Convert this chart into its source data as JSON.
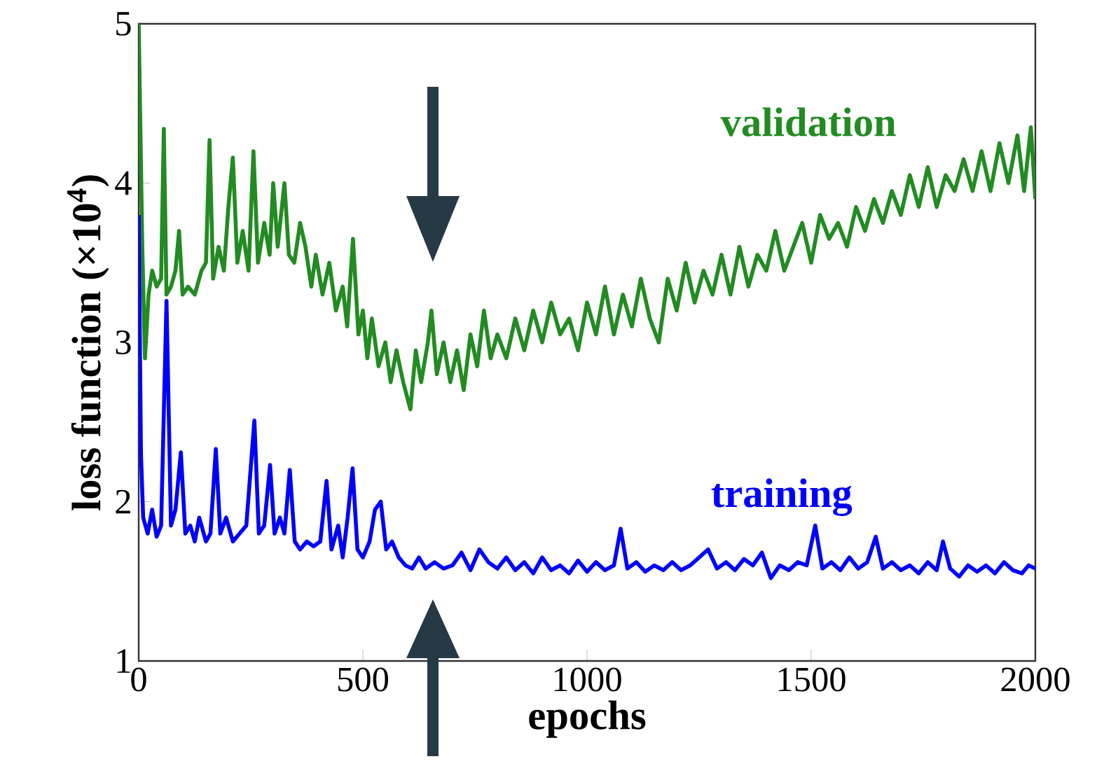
{
  "chart_data": {
    "type": "line",
    "xlabel": "epochs",
    "ylabel": "loss function (×10$^{4}$)",
    "xlim": [
      0,
      2000
    ],
    "ylim": [
      1,
      5
    ],
    "xticks": [
      0,
      500,
      1000,
      1500,
      2000
    ],
    "yticks": [
      1,
      2,
      3,
      4,
      5
    ],
    "legend": false,
    "grid": false,
    "marker": "none",
    "line_style": "solid",
    "series": [
      {
        "name": "validation",
        "color": "#228b22",
        "x": [
          0,
          8,
          14,
          22,
          30,
          40,
          50,
          56,
          62,
          72,
          82,
          90,
          98,
          110,
          125,
          140,
          150,
          158,
          166,
          178,
          190,
          200,
          210,
          220,
          232,
          245,
          256,
          266,
          280,
          292,
          300,
          310,
          325,
          335,
          347,
          360,
          372,
          385,
          395,
          410,
          425,
          440,
          455,
          465,
          478,
          490,
          500,
          510,
          520,
          535,
          550,
          562,
          575,
          590,
          606,
          618,
          630,
          645,
          653,
          665,
          680,
          695,
          710,
          725,
          740,
          755,
          770,
          785,
          800,
          820,
          840,
          860,
          880,
          900,
          920,
          940,
          960,
          980,
          1000,
          1020,
          1040,
          1060,
          1080,
          1100,
          1120,
          1140,
          1160,
          1180,
          1200,
          1220,
          1240,
          1260,
          1280,
          1300,
          1320,
          1340,
          1360,
          1380,
          1400,
          1420,
          1440,
          1460,
          1480,
          1500,
          1520,
          1540,
          1560,
          1580,
          1600,
          1620,
          1640,
          1660,
          1680,
          1700,
          1720,
          1740,
          1760,
          1780,
          1800,
          1820,
          1840,
          1860,
          1880,
          1900,
          1920,
          1940,
          1960,
          1975,
          1990,
          2000
        ],
        "values": [
          5.0,
          3.6,
          2.9,
          3.3,
          3.45,
          3.35,
          3.4,
          4.34,
          3.3,
          3.35,
          3.45,
          3.7,
          3.3,
          3.35,
          3.3,
          3.45,
          3.5,
          4.27,
          3.4,
          3.6,
          3.45,
          3.85,
          4.16,
          3.5,
          3.7,
          3.45,
          4.2,
          3.5,
          3.75,
          3.55,
          4.0,
          3.6,
          4.0,
          3.55,
          3.5,
          3.75,
          3.6,
          3.35,
          3.55,
          3.3,
          3.5,
          3.2,
          3.35,
          3.1,
          3.65,
          3.05,
          3.2,
          2.9,
          3.15,
          2.85,
          3.0,
          2.75,
          2.95,
          2.75,
          2.58,
          2.95,
          2.75,
          3.0,
          3.2,
          2.8,
          3.0,
          2.75,
          2.95,
          2.7,
          3.05,
          2.85,
          3.2,
          2.9,
          3.05,
          2.9,
          3.15,
          2.95,
          3.2,
          3.0,
          3.25,
          3.05,
          3.15,
          2.95,
          3.25,
          3.05,
          3.35,
          3.05,
          3.3,
          3.1,
          3.4,
          3.15,
          3.0,
          3.4,
          3.2,
          3.5,
          3.25,
          3.45,
          3.3,
          3.55,
          3.3,
          3.6,
          3.35,
          3.55,
          3.45,
          3.7,
          3.45,
          3.6,
          3.75,
          3.5,
          3.8,
          3.65,
          3.75,
          3.6,
          3.85,
          3.7,
          3.9,
          3.75,
          3.95,
          3.8,
          4.05,
          3.85,
          4.1,
          3.85,
          4.05,
          3.95,
          4.15,
          3.95,
          4.2,
          3.95,
          4.25,
          4.0,
          4.3,
          3.95,
          4.35,
          3.9
        ]
      },
      {
        "name": "training",
        "color": "#0000ff",
        "x": [
          0,
          5,
          10,
          20,
          30,
          40,
          50,
          62,
          72,
          82,
          94,
          104,
          115,
          125,
          135,
          150,
          160,
          172,
          182,
          195,
          210,
          225,
          240,
          258,
          268,
          280,
          293,
          303,
          315,
          325,
          337,
          348,
          360,
          375,
          390,
          405,
          419,
          430,
          445,
          455,
          466,
          477,
          488,
          500,
          515,
          527,
          540,
          552,
          565,
          580,
          595,
          610,
          625,
          640,
          660,
          680,
          700,
          720,
          740,
          760,
          780,
          800,
          820,
          840,
          860,
          880,
          900,
          920,
          940,
          960,
          980,
          1000,
          1020,
          1040,
          1060,
          1075,
          1090,
          1110,
          1130,
          1150,
          1170,
          1190,
          1210,
          1230,
          1250,
          1270,
          1290,
          1310,
          1330,
          1350,
          1370,
          1390,
          1410,
          1430,
          1450,
          1470,
          1490,
          1509,
          1525,
          1545,
          1565,
          1585,
          1605,
          1625,
          1644,
          1660,
          1680,
          1700,
          1720,
          1740,
          1760,
          1780,
          1794,
          1810,
          1830,
          1850,
          1870,
          1890,
          1910,
          1930,
          1950,
          1970,
          1985,
          2000
        ],
        "values": [
          3.8,
          2.3,
          1.9,
          1.8,
          1.95,
          1.78,
          1.85,
          3.26,
          1.85,
          1.95,
          2.31,
          1.8,
          1.85,
          1.75,
          1.9,
          1.75,
          1.8,
          2.33,
          1.8,
          1.9,
          1.75,
          1.8,
          1.85,
          2.51,
          1.8,
          1.85,
          2.23,
          1.8,
          1.9,
          1.8,
          2.2,
          1.75,
          1.7,
          1.75,
          1.72,
          1.75,
          2.13,
          1.7,
          1.85,
          1.65,
          1.9,
          2.21,
          1.7,
          1.65,
          1.75,
          1.95,
          2.0,
          1.7,
          1.75,
          1.65,
          1.6,
          1.58,
          1.65,
          1.58,
          1.62,
          1.58,
          1.6,
          1.68,
          1.57,
          1.7,
          1.62,
          1.58,
          1.65,
          1.57,
          1.62,
          1.55,
          1.65,
          1.57,
          1.6,
          1.55,
          1.63,
          1.56,
          1.62,
          1.57,
          1.6,
          1.83,
          1.58,
          1.62,
          1.56,
          1.6,
          1.57,
          1.62,
          1.57,
          1.6,
          1.65,
          1.7,
          1.58,
          1.62,
          1.57,
          1.64,
          1.6,
          1.68,
          1.52,
          1.6,
          1.57,
          1.62,
          1.6,
          1.85,
          1.58,
          1.62,
          1.57,
          1.65,
          1.58,
          1.62,
          1.78,
          1.58,
          1.62,
          1.57,
          1.6,
          1.55,
          1.62,
          1.57,
          1.75,
          1.58,
          1.53,
          1.6,
          1.56,
          1.6,
          1.55,
          1.62,
          1.57,
          1.55,
          1.6,
          1.58
        ]
      }
    ]
  }
}
